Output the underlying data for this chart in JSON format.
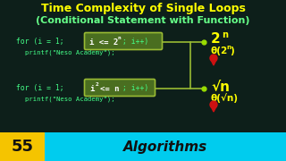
{
  "bg_color": "#0d1f1a",
  "title_line1": "Time Complexity of Single Loops",
  "title_line2": "(Conditional Statement with Function)",
  "title_color": "#ffff00",
  "title_line2_color": "#66ff88",
  "code_color": "#44ff88",
  "highlight_box_color": "#4a6e20",
  "highlight_box_border": "#99bb33",
  "result_color": "#ffff00",
  "connector_color": "#99bb33",
  "dot_color": "#99dd00",
  "pin_body_color": "#cc1111",
  "pin_tip_color": "#cc1111",
  "footer_num": "55",
  "footer_text": "Algorithms",
  "footer_yellow": "#f5c400",
  "footer_cyan": "#00ccee",
  "footer_text_color": "#111111",
  "white": "#ffffff"
}
